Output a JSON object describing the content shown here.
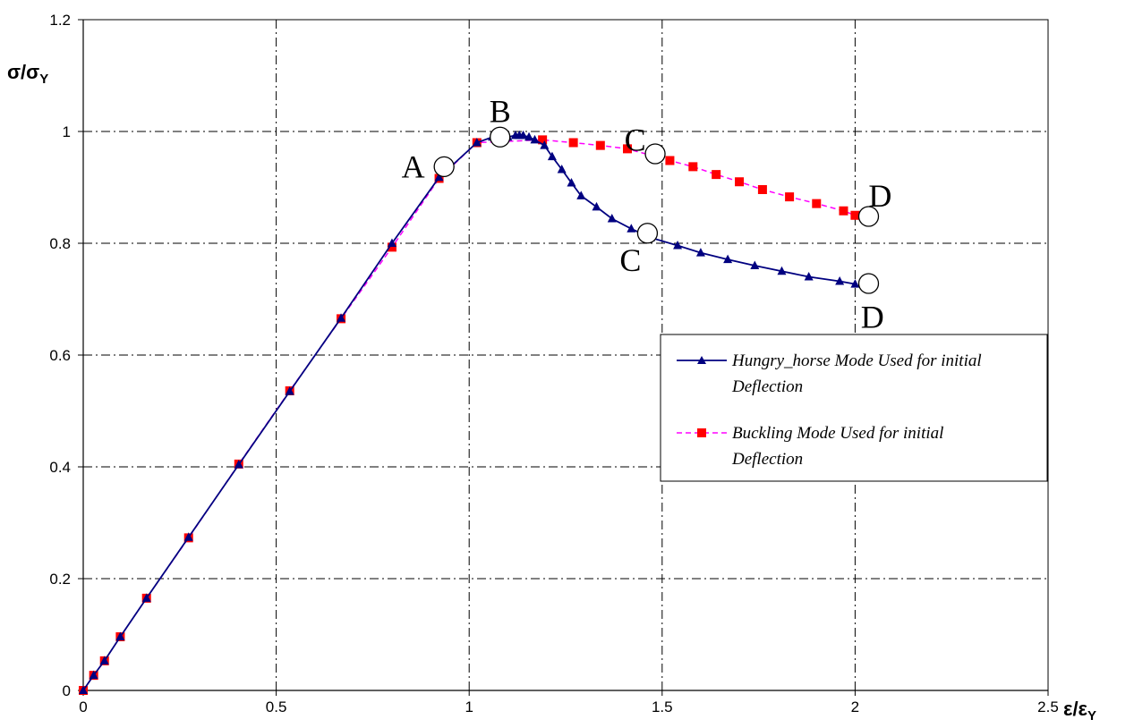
{
  "chart_data": {
    "type": "line",
    "xlabel": {
      "main": "ε/ε",
      "sub": "Y"
    },
    "ylabel": {
      "main": "σ/σ",
      "sub": "Y"
    },
    "xlim": [
      0,
      2.5
    ],
    "ylim": [
      0,
      1.2
    ],
    "xticks": [
      "0",
      "0.5",
      "1",
      "1.5",
      "2",
      "2.5"
    ],
    "yticks": [
      "0",
      "0.2",
      "0.4",
      "0.6",
      "0.8",
      "1",
      "1.2"
    ],
    "grid": true,
    "legend_position": "right",
    "series": [
      {
        "name": "Hungry_horse Mode Used for initial Deflection",
        "color": "#000080",
        "marker": "triangle",
        "line": "solid",
        "x": [
          0,
          0.027,
          0.055,
          0.096,
          0.164,
          0.273,
          0.403,
          0.535,
          0.668,
          0.8,
          0.922,
          1.02,
          1.06,
          1.1,
          1.12,
          1.13,
          1.14,
          1.155,
          1.17,
          1.195,
          1.215,
          1.24,
          1.265,
          1.29,
          1.33,
          1.37,
          1.42,
          1.47,
          1.54,
          1.6,
          1.67,
          1.74,
          1.81,
          1.88,
          1.96,
          2.0
        ],
        "y": [
          0,
          0.027,
          0.053,
          0.096,
          0.165,
          0.274,
          0.404,
          0.535,
          0.666,
          0.8,
          0.918,
          0.98,
          0.99,
          0.99,
          0.993,
          0.993,
          0.993,
          0.99,
          0.985,
          0.975,
          0.955,
          0.932,
          0.908,
          0.885,
          0.865,
          0.844,
          0.826,
          0.81,
          0.796,
          0.783,
          0.771,
          0.76,
          0.75,
          0.74,
          0.732,
          0.727
        ]
      },
      {
        "name": "Buckling Mode Used for initial Deflection",
        "color": "#ff00ff",
        "marker": "square",
        "markerColor": "#ff0000",
        "line": "dashed",
        "x": [
          0,
          0.027,
          0.055,
          0.096,
          0.164,
          0.273,
          0.403,
          0.535,
          0.668,
          0.8,
          0.922,
          1.02,
          1.19,
          1.27,
          1.34,
          1.41,
          1.52,
          1.58,
          1.64,
          1.7,
          1.76,
          1.83,
          1.9,
          1.97,
          2.0
        ],
        "y": [
          0,
          0.027,
          0.053,
          0.096,
          0.165,
          0.273,
          0.405,
          0.536,
          0.665,
          0.793,
          0.916,
          0.98,
          0.985,
          0.98,
          0.975,
          0.969,
          0.948,
          0.937,
          0.923,
          0.91,
          0.896,
          0.883,
          0.871,
          0.858,
          0.85
        ]
      }
    ],
    "annotations": [
      {
        "text": "A",
        "circle": [
          0.935,
          0.937
        ],
        "label": [
          0.855,
          0.937
        ]
      },
      {
        "text": "B",
        "circle": [
          1.08,
          0.99
        ],
        "label": [
          1.08,
          1.036
        ]
      },
      {
        "text": "C",
        "circle": [
          1.482,
          0.96
        ],
        "label": [
          1.43,
          0.985
        ]
      },
      {
        "text": "D",
        "circle": [
          2.035,
          0.848
        ],
        "label": [
          2.065,
          0.885
        ]
      },
      {
        "text": "C",
        "circle": [
          1.462,
          0.818
        ],
        "label": [
          1.418,
          0.77
        ]
      },
      {
        "text": "D",
        "circle": [
          2.035,
          0.728
        ],
        "label": [
          2.045,
          0.668
        ]
      }
    ]
  }
}
